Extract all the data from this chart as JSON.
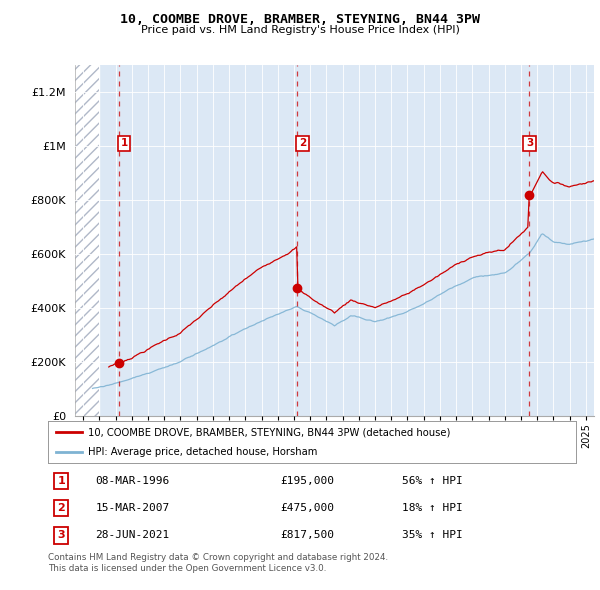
{
  "title": "10, COOMBE DROVE, BRAMBER, STEYNING, BN44 3PW",
  "subtitle": "Price paid vs. HM Land Registry's House Price Index (HPI)",
  "sale_color": "#cc0000",
  "hpi_color": "#7fb3d3",
  "sale_label": "10, COOMBE DROVE, BRAMBER, STEYNING, BN44 3PW (detached house)",
  "hpi_label": "HPI: Average price, detached house, Horsham",
  "sales": [
    {
      "date_year": 1996.19,
      "price": 195000,
      "label": "1",
      "date_str": "08-MAR-1996",
      "hpi_pct": "56%"
    },
    {
      "date_year": 2007.21,
      "price": 475000,
      "label": "2",
      "date_str": "15-MAR-2007",
      "hpi_pct": "18%"
    },
    {
      "date_year": 2021.49,
      "price": 817500,
      "label": "3",
      "date_str": "28-JUN-2021",
      "hpi_pct": "35%"
    }
  ],
  "ylim": [
    0,
    1300000
  ],
  "xlim": [
    1993.5,
    2025.5
  ],
  "yticks": [
    0,
    200000,
    400000,
    600000,
    800000,
    1000000,
    1200000
  ],
  "ytick_labels": [
    "£0",
    "£200K",
    "£400K",
    "£600K",
    "£800K",
    "£1M",
    "£1.2M"
  ],
  "copyright_text": "Contains HM Land Registry data © Crown copyright and database right 2024.\nThis data is licensed under the Open Government Licence v3.0.",
  "background_color": "#ffffff",
  "plot_bg_color": "#dce8f5",
  "grid_color": "#ffffff",
  "hatch_color": "#b0b8c8"
}
